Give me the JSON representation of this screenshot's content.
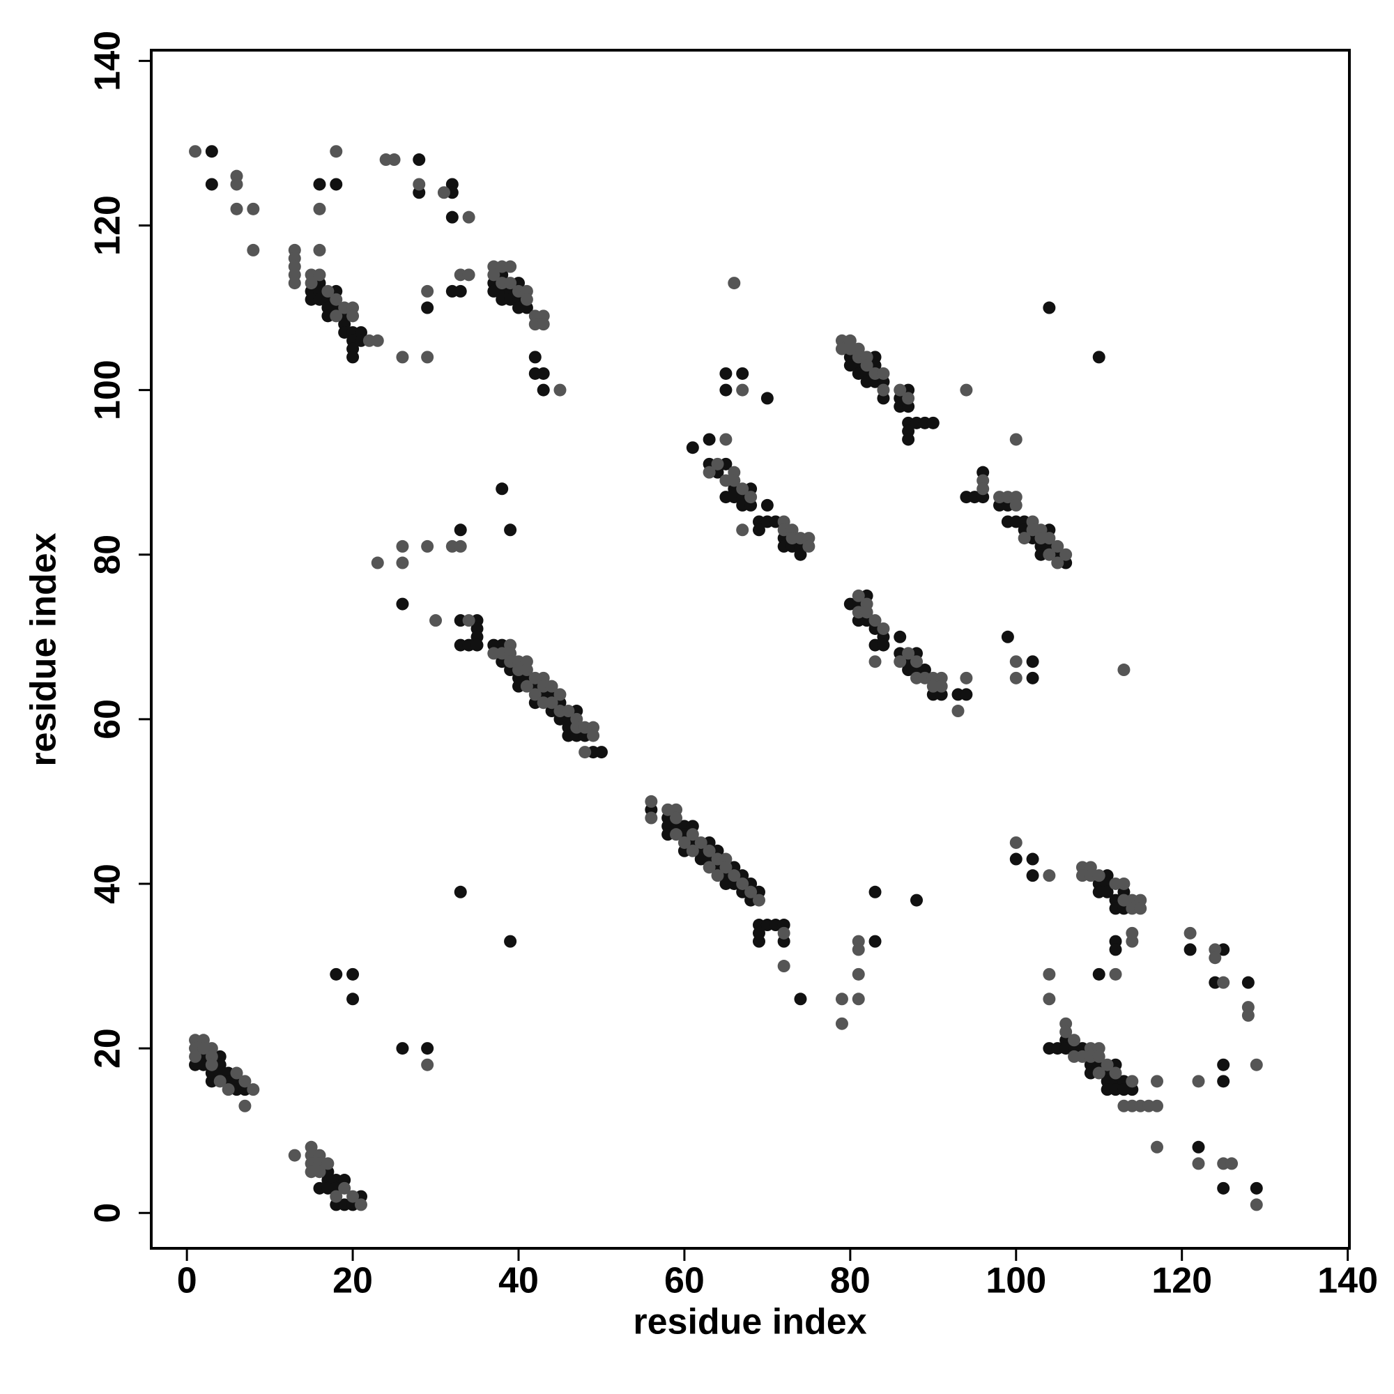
{
  "chart_data": {
    "type": "scatter",
    "x_label": "residue index",
    "y_label": "residue index",
    "xlim": [
      -4.3,
      140.2
    ],
    "ylim": [
      -4.3,
      141.3
    ],
    "xticks": [
      0,
      20,
      40,
      60,
      80,
      100,
      120,
      140
    ],
    "yticks": [
      0,
      20,
      40,
      60,
      80,
      100,
      120,
      140
    ],
    "grid": false,
    "series": [
      {
        "color": "#111111",
        "x": [
          1,
          2,
          2,
          3,
          3,
          4,
          4,
          4,
          5,
          5,
          6,
          6,
          7,
          16,
          17,
          17,
          17,
          18,
          18,
          18,
          19,
          19,
          20,
          21,
          18,
          20,
          20,
          26,
          29,
          33,
          39,
          33,
          33,
          34,
          35,
          35,
          35,
          35,
          37,
          38,
          38,
          39,
          40,
          40,
          41,
          42,
          42,
          43,
          44,
          44,
          45,
          45,
          46,
          46,
          46,
          47,
          47,
          48,
          49,
          50,
          26,
          33,
          38,
          39,
          15,
          15,
          16,
          16,
          16,
          17,
          17,
          17,
          18,
          18,
          19,
          19,
          19,
          20,
          20,
          20,
          20,
          21,
          21,
          3,
          3,
          16,
          18,
          28,
          28,
          32,
          32,
          32,
          29,
          32,
          33,
          37,
          37,
          38,
          38,
          38,
          39,
          39,
          40,
          40,
          40,
          41,
          42,
          42,
          43,
          43,
          56,
          58,
          58,
          58,
          59,
          60,
          60,
          60,
          61,
          61,
          62,
          62,
          63,
          63,
          64,
          64,
          65,
          65,
          66,
          66,
          67,
          67,
          68,
          68,
          69,
          69,
          69,
          69,
          70,
          71,
          72,
          72,
          74,
          83,
          83,
          88,
          61,
          63,
          63,
          64,
          65,
          65,
          66,
          66,
          67,
          67,
          68,
          68,
          69,
          69,
          70,
          70,
          71,
          72,
          72,
          73,
          74,
          74,
          65,
          65,
          67,
          70,
          80,
          80,
          81,
          81,
          82,
          82,
          83,
          83,
          83,
          84,
          84,
          86,
          86,
          87,
          87,
          87,
          87,
          87,
          88,
          89,
          90,
          80,
          81,
          81,
          82,
          82,
          83,
          83,
          84,
          84,
          86,
          86,
          87,
          87,
          88,
          88,
          89,
          90,
          91,
          93,
          94,
          102,
          102,
          99,
          94,
          95,
          96,
          96,
          98,
          99,
          99,
          100,
          101,
          101,
          102,
          103,
          103,
          104,
          104,
          105,
          106,
          104,
          110,
          100,
          102,
          102,
          110,
          110,
          111,
          111,
          111,
          112,
          112,
          113,
          113,
          112,
          112,
          110,
          104,
          105,
          106,
          106,
          107,
          108,
          109,
          109,
          110,
          111,
          111,
          111,
          112,
          112,
          112,
          113,
          113,
          114,
          121,
          122,
          124,
          125,
          125,
          125,
          125,
          128,
          129
        ],
        "values": [
          18,
          19,
          18,
          16,
          17,
          19,
          18,
          17,
          17,
          16,
          16,
          15,
          15,
          3,
          5,
          4,
          3,
          4,
          3,
          1,
          4,
          1,
          1,
          2,
          29,
          29,
          26,
          20,
          20,
          39,
          33,
          72,
          69,
          69,
          72,
          71,
          70,
          69,
          69,
          69,
          67,
          66,
          65,
          64,
          65,
          64,
          62,
          63,
          63,
          61,
          62,
          60,
          60,
          59,
          58,
          61,
          58,
          58,
          56,
          56,
          74,
          83,
          88,
          83,
          112,
          111,
          113,
          112,
          111,
          111,
          110,
          109,
          112,
          110,
          109,
          108,
          107,
          107,
          106,
          105,
          104,
          107,
          106,
          129,
          125,
          125,
          125,
          128,
          124,
          125,
          124,
          121,
          110,
          112,
          112,
          113,
          112,
          114,
          112,
          111,
          112,
          111,
          113,
          111,
          110,
          110,
          104,
          102,
          102,
          100,
          49,
          48,
          47,
          46,
          47,
          47,
          46,
          44,
          47,
          45,
          44,
          43,
          45,
          43,
          44,
          42,
          41,
          40,
          42,
          40,
          41,
          39,
          40,
          38,
          39,
          35,
          34,
          33,
          35,
          35,
          35,
          33,
          26,
          39,
          33,
          38,
          93,
          94,
          91,
          90,
          91,
          87,
          88,
          87,
          87,
          86,
          88,
          86,
          84,
          83,
          86,
          84,
          84,
          82,
          81,
          81,
          81,
          80,
          102,
          100,
          102,
          99,
          104,
          103,
          103,
          102,
          102,
          101,
          104,
          103,
          101,
          101,
          99,
          99,
          98,
          100,
          98,
          96,
          95,
          94,
          96,
          96,
          96,
          74,
          74,
          72,
          75,
          72,
          71,
          69,
          70,
          69,
          70,
          68,
          67,
          66,
          68,
          66,
          66,
          63,
          63,
          63,
          63,
          65,
          67,
          70,
          87,
          87,
          90,
          87,
          86,
          86,
          84,
          84,
          84,
          83,
          82,
          81,
          80,
          83,
          81,
          80,
          79,
          110,
          104,
          43,
          43,
          41,
          40,
          39,
          41,
          40,
          39,
          38,
          37,
          39,
          37,
          33,
          32,
          29,
          20,
          20,
          21,
          20,
          20,
          20,
          18,
          17,
          18,
          17,
          16,
          15,
          18,
          16,
          15,
          16,
          15,
          15,
          32,
          8,
          28,
          32,
          18,
          16,
          3,
          28,
          3
        ]
      },
      {
        "color": "#555555",
        "x": [
          1,
          1,
          1,
          2,
          2,
          3,
          3,
          3,
          4,
          5,
          6,
          7,
          7,
          8,
          13,
          15,
          15,
          15,
          15,
          16,
          16,
          16,
          17,
          18,
          19,
          20,
          21,
          29,
          34,
          37,
          38,
          39,
          39,
          39,
          40,
          40,
          41,
          41,
          41,
          42,
          42,
          43,
          43,
          43,
          44,
          44,
          45,
          45,
          46,
          47,
          47,
          48,
          48,
          49,
          49,
          23,
          26,
          26,
          29,
          30,
          32,
          33,
          13,
          13,
          13,
          13,
          13,
          15,
          15,
          16,
          16,
          17,
          18,
          18,
          19,
          20,
          20,
          22,
          23,
          26,
          29,
          1,
          6,
          6,
          6,
          8,
          8,
          16,
          18,
          24,
          25,
          28,
          31,
          34,
          29,
          33,
          34,
          37,
          37,
          38,
          38,
          39,
          39,
          40,
          41,
          41,
          42,
          42,
          43,
          43,
          45,
          56,
          56,
          58,
          59,
          59,
          59,
          60,
          61,
          61,
          62,
          63,
          63,
          64,
          64,
          65,
          65,
          66,
          67,
          68,
          69,
          72,
          72,
          79,
          79,
          81,
          81,
          81,
          81,
          63,
          64,
          65,
          65,
          66,
          66,
          67,
          67,
          68,
          72,
          72,
          73,
          73,
          74,
          75,
          75,
          66,
          67,
          79,
          79,
          80,
          80,
          81,
          81,
          82,
          82,
          83,
          84,
          84,
          86,
          87,
          94,
          81,
          81,
          82,
          82,
          83,
          83,
          84,
          86,
          87,
          88,
          88,
          89,
          90,
          90,
          91,
          91,
          93,
          94,
          100,
          100,
          113,
          96,
          96,
          98,
          99,
          100,
          100,
          100,
          101,
          102,
          102,
          103,
          103,
          104,
          104,
          105,
          105,
          106,
          100,
          104,
          108,
          108,
          109,
          109,
          110,
          112,
          113,
          113,
          114,
          114,
          115,
          115,
          114,
          114,
          104,
          104,
          112,
          106,
          106,
          107,
          107,
          108,
          109,
          109,
          110,
          110,
          110,
          111,
          112,
          113,
          114,
          114,
          115,
          116,
          117,
          117,
          117,
          121,
          122,
          122,
          124,
          124,
          125,
          125,
          126,
          128,
          128,
          129,
          129
        ],
        "values": [
          21,
          20,
          19,
          21,
          20,
          20,
          19,
          18,
          16,
          15,
          17,
          16,
          13,
          15,
          7,
          8,
          7,
          6,
          5,
          7,
          6,
          5,
          6,
          2,
          3,
          2,
          1,
          18,
          72,
          68,
          68,
          69,
          68,
          67,
          67,
          66,
          67,
          66,
          64,
          65,
          63,
          65,
          64,
          62,
          64,
          62,
          63,
          61,
          61,
          60,
          59,
          59,
          56,
          59,
          58,
          79,
          81,
          79,
          81,
          72,
          81,
          81,
          117,
          116,
          115,
          114,
          113,
          114,
          113,
          117,
          114,
          112,
          111,
          109,
          110,
          110,
          109,
          106,
          106,
          104,
          104,
          129,
          126,
          125,
          122,
          122,
          117,
          122,
          129,
          128,
          128,
          125,
          124,
          121,
          112,
          114,
          114,
          115,
          114,
          115,
          113,
          115,
          113,
          112,
          112,
          111,
          109,
          108,
          109,
          108,
          100,
          50,
          48,
          49,
          49,
          48,
          46,
          45,
          46,
          44,
          45,
          44,
          42,
          43,
          41,
          43,
          42,
          41,
          40,
          39,
          38,
          34,
          30,
          26,
          23,
          33,
          32,
          29,
          26,
          90,
          91,
          94,
          89,
          90,
          89,
          88,
          83,
          87,
          84,
          83,
          83,
          82,
          82,
          82,
          81,
          113,
          100,
          106,
          105,
          106,
          105,
          105,
          104,
          104,
          103,
          102,
          102,
          100,
          100,
          99,
          100,
          75,
          73,
          74,
          73,
          72,
          67,
          71,
          67,
          68,
          67,
          65,
          65,
          65,
          64,
          65,
          64,
          61,
          65,
          67,
          65,
          66,
          89,
          88,
          87,
          87,
          87,
          86,
          94,
          82,
          84,
          83,
          83,
          82,
          82,
          80,
          81,
          79,
          80,
          45,
          41,
          42,
          41,
          42,
          41,
          41,
          40,
          40,
          38,
          38,
          37,
          38,
          37,
          34,
          33,
          29,
          26,
          29,
          23,
          22,
          21,
          19,
          19,
          20,
          19,
          20,
          19,
          17,
          18,
          17,
          13,
          16,
          13,
          13,
          13,
          16,
          13,
          8,
          34,
          16,
          6,
          32,
          31,
          28,
          6,
          6,
          25,
          24,
          18,
          1
        ]
      }
    ]
  }
}
